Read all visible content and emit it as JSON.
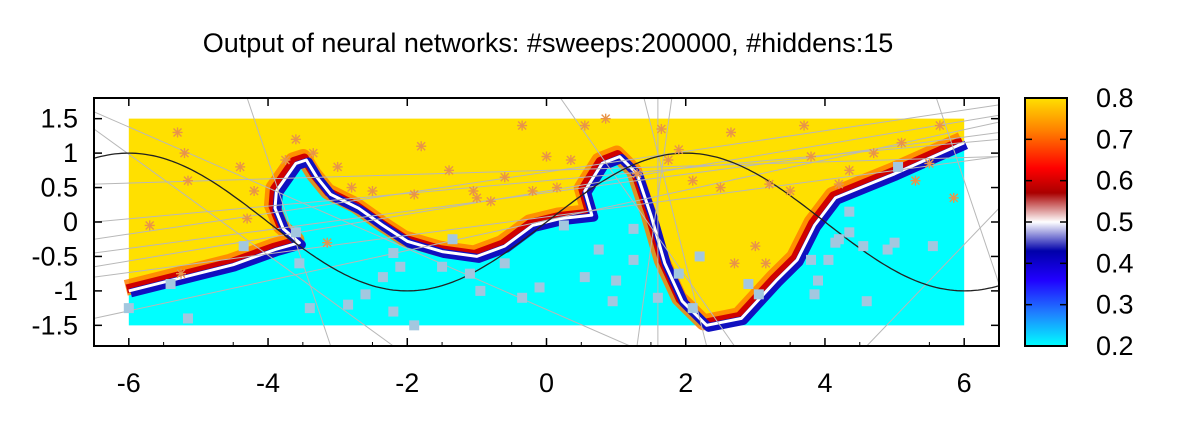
{
  "chart_data": {
    "type": "heatmap",
    "title": "Output of neural networks: #sweeps:200000, #hiddens:15",
    "xlabel": "",
    "ylabel": "",
    "xlim": [
      -6.5,
      6.5
    ],
    "ylim": [
      -1.8,
      1.8
    ],
    "x_ticks": [
      "-6",
      "-4",
      "-2",
      "0",
      "2",
      "4",
      "6"
    ],
    "y_ticks": [
      "1.5",
      "1",
      "0.5",
      "0",
      "-0.5",
      "-1",
      "-1.5"
    ],
    "colorbar": {
      "range": [
        0.2,
        0.8
      ],
      "ticks": [
        "0.8",
        "0.7",
        "0.6",
        "0.5",
        "0.4",
        "0.3",
        "0.2"
      ],
      "stops": [
        {
          "v": 0.2,
          "color": "#00ffff"
        },
        {
          "v": 0.28,
          "color": "#1f7fff"
        },
        {
          "v": 0.36,
          "color": "#2000ff"
        },
        {
          "v": 0.43,
          "color": "#0000aa"
        },
        {
          "v": 0.5,
          "color": "#ffffff"
        },
        {
          "v": 0.57,
          "color": "#aa0000"
        },
        {
          "v": 0.63,
          "color": "#ff0000"
        },
        {
          "v": 0.72,
          "color": "#ff7f00"
        },
        {
          "v": 0.8,
          "color": "#ffe000"
        }
      ]
    },
    "heatmap_domain": {
      "x": [
        -6,
        6
      ],
      "y": [
        -1.5,
        1.5
      ]
    },
    "high_color": "#ffe000",
    "low_color": "#00ffff",
    "decision_boundary": [
      [
        -6.0,
        -1.0
      ],
      [
        -4.5,
        -0.62
      ],
      [
        -3.9,
        -0.4
      ],
      [
        -3.55,
        -0.3
      ],
      [
        -3.78,
        -0.1
      ],
      [
        -3.9,
        0.2
      ],
      [
        -3.88,
        0.45
      ],
      [
        -3.6,
        0.85
      ],
      [
        -3.45,
        0.9
      ],
      [
        -3.3,
        0.65
      ],
      [
        -3.1,
        0.4
      ],
      [
        -2.7,
        0.2
      ],
      [
        -2.35,
        -0.05
      ],
      [
        -2.0,
        -0.28
      ],
      [
        -1.5,
        -0.43
      ],
      [
        -1.0,
        -0.5
      ],
      [
        -0.6,
        -0.35
      ],
      [
        -0.2,
        -0.05
      ],
      [
        0.2,
        0.05
      ],
      [
        0.65,
        0.1
      ],
      [
        0.55,
        0.45
      ],
      [
        0.8,
        0.85
      ],
      [
        1.05,
        0.95
      ],
      [
        1.3,
        0.7
      ],
      [
        1.5,
        0.1
      ],
      [
        1.7,
        -0.6
      ],
      [
        1.95,
        -1.15
      ],
      [
        2.3,
        -1.5
      ],
      [
        2.8,
        -1.4
      ],
      [
        3.3,
        -0.85
      ],
      [
        3.6,
        -0.55
      ],
      [
        3.85,
        -0.05
      ],
      [
        4.15,
        0.35
      ],
      [
        5.0,
        0.7
      ],
      [
        6.0,
        1.15
      ]
    ],
    "sine_curve": {
      "function": "sin",
      "amplitude": 1,
      "period_per_unit": 0.785,
      "x_range": [
        -6.5,
        6.5
      ]
    },
    "series": [
      {
        "name": "",
        "marker": "star",
        "color": "#e8944a",
        "points": [
          [
            -5.7,
            -0.05
          ],
          [
            -5.3,
            1.3
          ],
          [
            -5.2,
            1.0
          ],
          [
            -5.15,
            0.6
          ],
          [
            -5.25,
            -0.75
          ],
          [
            -4.4,
            0.8
          ],
          [
            -4.2,
            0.45
          ],
          [
            -4.3,
            0.05
          ],
          [
            -3.75,
            0.9
          ],
          [
            -3.6,
            1.2
          ],
          [
            -3.35,
            1.0
          ],
          [
            -3.0,
            0.8
          ],
          [
            -3.15,
            -0.3
          ],
          [
            -2.5,
            0.45
          ],
          [
            -2.8,
            0.5
          ],
          [
            -1.9,
            0.4
          ],
          [
            -1.8,
            1.1
          ],
          [
            -1.4,
            0.75
          ],
          [
            -1.05,
            0.45
          ],
          [
            -1.0,
            0.35
          ],
          [
            -0.8,
            0.3
          ],
          [
            -0.6,
            0.65
          ],
          [
            -0.35,
            1.4
          ],
          [
            -0.2,
            0.45
          ],
          [
            0.0,
            0.95
          ],
          [
            0.15,
            0.5
          ],
          [
            0.35,
            0.9
          ],
          [
            0.55,
            1.4
          ],
          [
            0.85,
            1.5
          ],
          [
            1.3,
            0.7
          ],
          [
            1.65,
            1.35
          ],
          [
            1.75,
            0.9
          ],
          [
            1.9,
            1.05
          ],
          [
            2.1,
            0.6
          ],
          [
            2.5,
            0.5
          ],
          [
            2.65,
            1.3
          ],
          [
            2.7,
            -0.6
          ],
          [
            3.0,
            -0.35
          ],
          [
            3.15,
            -0.6
          ],
          [
            3.2,
            0.55
          ],
          [
            3.5,
            0.45
          ],
          [
            3.7,
            1.4
          ],
          [
            3.8,
            0.95
          ],
          [
            4.2,
            0.55
          ],
          [
            4.35,
            0.75
          ],
          [
            4.7,
            1.0
          ],
          [
            5.1,
            1.15
          ],
          [
            5.3,
            0.6
          ],
          [
            5.5,
            0.85
          ],
          [
            5.65,
            1.4
          ],
          [
            5.85,
            0.35
          ]
        ]
      },
      {
        "name": "",
        "marker": "square",
        "color": "#a3c7df",
        "points": [
          [
            -6.0,
            -1.25
          ],
          [
            -5.4,
            -0.9
          ],
          [
            -5.15,
            -1.4
          ],
          [
            -4.35,
            -0.35
          ],
          [
            -3.6,
            -0.15
          ],
          [
            -3.55,
            -0.6
          ],
          [
            -3.4,
            -1.25
          ],
          [
            -2.85,
            -1.2
          ],
          [
            -2.6,
            -1.05
          ],
          [
            -2.35,
            -0.8
          ],
          [
            -2.2,
            -0.45
          ],
          [
            -2.1,
            -0.65
          ],
          [
            -2.2,
            -1.3
          ],
          [
            -1.9,
            -1.5
          ],
          [
            -1.5,
            -0.65
          ],
          [
            -1.35,
            -0.25
          ],
          [
            -1.1,
            -0.75
          ],
          [
            -0.95,
            -1.0
          ],
          [
            -0.6,
            -0.6
          ],
          [
            -0.35,
            -1.1
          ],
          [
            -0.1,
            -0.95
          ],
          [
            0.25,
            -0.05
          ],
          [
            0.55,
            -0.8
          ],
          [
            0.75,
            -0.4
          ],
          [
            0.95,
            -1.15
          ],
          [
            1.0,
            -0.85
          ],
          [
            1.25,
            -0.1
          ],
          [
            1.25,
            -0.55
          ],
          [
            1.6,
            -1.1
          ],
          [
            1.9,
            -0.75
          ],
          [
            2.1,
            -1.25
          ],
          [
            2.2,
            -0.5
          ],
          [
            2.9,
            -0.9
          ],
          [
            3.05,
            -1.05
          ],
          [
            3.8,
            -0.55
          ],
          [
            3.85,
            -1.05
          ],
          [
            3.9,
            -0.85
          ],
          [
            4.05,
            -0.55
          ],
          [
            4.15,
            -0.3
          ],
          [
            4.2,
            -0.25
          ],
          [
            4.35,
            -0.15
          ],
          [
            4.35,
            0.15
          ],
          [
            4.55,
            -0.35
          ],
          [
            4.6,
            -1.15
          ],
          [
            4.9,
            -0.4
          ],
          [
            5.0,
            -0.3
          ],
          [
            5.55,
            -0.35
          ],
          [
            5.05,
            0.8
          ]
        ]
      }
    ],
    "grid": false,
    "legend": "none"
  }
}
